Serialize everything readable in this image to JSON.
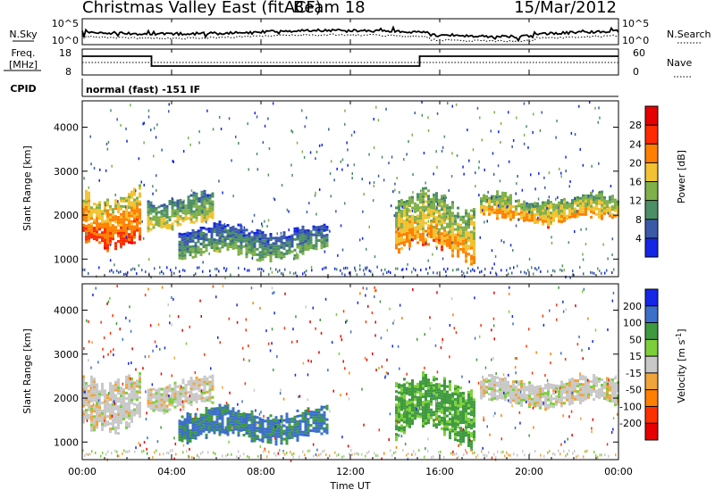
{
  "header": {
    "title": "Christmas Valley East (fitACF)",
    "beam": "Beam 18",
    "date": "15/Mar/2012"
  },
  "top_panels": {
    "nsky_label": "N.Sky",
    "nsky_ticks": [
      "10^5",
      "10^0"
    ],
    "nsearch_label": "N.Search",
    "nsearch_ticks": [
      "10^5",
      "10^0"
    ],
    "freq_label_1": "Freq.",
    "freq_label_2": "[MHz]",
    "freq_ticks": [
      "18",
      "8"
    ],
    "nave_label": "Nave",
    "nave_ticks": [
      "60",
      "0"
    ],
    "cpid_label": "CPID",
    "cpid_value": "normal (fast) -151 IF"
  },
  "chart_data": [
    {
      "type": "heatmap",
      "title": "",
      "xlabel": "Time UT",
      "ylabel": "Slant Range [km]",
      "x_ticks": [
        "00:00",
        "04:00",
        "08:00",
        "12:00",
        "16:00",
        "20:00",
        "00:00"
      ],
      "y_ticks": [
        1000,
        2000,
        3000,
        4000
      ],
      "ylim": [
        600,
        4600
      ],
      "xlim_hours": [
        0,
        24
      ],
      "colorbar": {
        "label": "Power [dB]",
        "ticks": [
          4,
          8,
          12,
          16,
          20,
          24,
          28
        ],
        "range": [
          0,
          32
        ],
        "colors": [
          "#1426e6",
          "#3a5aa8",
          "#4c8f66",
          "#7fb04a",
          "#f1c232",
          "#ff8000",
          "#ff2a00",
          "#e60000"
        ]
      },
      "echo_bands": [
        {
          "t_start": 0.0,
          "t_end": 2.6,
          "range_start_km": 1300,
          "range_end_km": 2700,
          "power_dB": 26
        },
        {
          "t_start": 2.9,
          "t_end": 5.8,
          "range_start_km": 1700,
          "range_end_km": 2500,
          "power_dB": 18
        },
        {
          "t_start": 4.3,
          "t_end": 11.0,
          "range_start_km": 1000,
          "range_end_km": 1800,
          "power_dB": 14
        },
        {
          "t_start": 14.0,
          "t_end": 17.5,
          "range_start_km": 1000,
          "range_end_km": 2500,
          "power_dB": 22
        },
        {
          "t_start": 17.8,
          "t_end": 24.0,
          "range_start_km": 1800,
          "range_end_km": 2500,
          "power_dB": 22
        }
      ]
    },
    {
      "type": "heatmap",
      "title": "",
      "xlabel": "Time UT",
      "ylabel": "Slant Range [km]",
      "x_ticks": [
        "00:00",
        "04:00",
        "08:00",
        "12:00",
        "16:00",
        "20:00",
        "00:00"
      ],
      "y_ticks": [
        1000,
        2000,
        3000,
        4000
      ],
      "ylim": [
        600,
        4600
      ],
      "xlim_hours": [
        0,
        24
      ],
      "colorbar": {
        "label": "Velocity [m s^-1]",
        "ticks": [
          200,
          100,
          50,
          15,
          -15,
          -50,
          -100,
          -200
        ],
        "range": [
          -250,
          250
        ],
        "colors": [
          "#1426e6",
          "#3b6fc9",
          "#3f9a3f",
          "#7ccf3a",
          "#c8c8c8",
          "#f0a53c",
          "#ff8000",
          "#ff3000",
          "#e60000"
        ]
      },
      "echo_bands": [
        {
          "t_start": 0.0,
          "t_end": 2.6,
          "range_start_km": 1300,
          "range_end_km": 2700,
          "velocity_ms": 0
        },
        {
          "t_start": 2.9,
          "t_end": 5.8,
          "range_start_km": 1700,
          "range_end_km": 2500,
          "velocity_ms": 0
        },
        {
          "t_start": 4.3,
          "t_end": 11.0,
          "range_start_km": 1000,
          "range_end_km": 1800,
          "velocity_ms": 80
        },
        {
          "t_start": 14.0,
          "t_end": 17.5,
          "range_start_km": 1000,
          "range_end_km": 2500,
          "velocity_ms": 40
        },
        {
          "t_start": 17.8,
          "t_end": 24.0,
          "range_start_km": 1800,
          "range_end_km": 2500,
          "velocity_ms": 0
        }
      ]
    }
  ]
}
